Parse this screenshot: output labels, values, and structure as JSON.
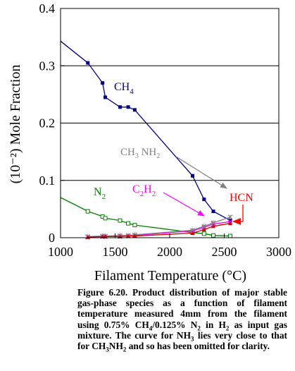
{
  "chart_data": {
    "type": "scatter",
    "xlabel": "Filament Temperature",
    "xlabel_unit": "(°C)",
    "ylabel": "(10⁻²) Mole Fraction",
    "xlim": [
      1000,
      3000
    ],
    "ylim": [
      0,
      0.4
    ],
    "xticks": [
      "1000",
      "1500",
      "2000",
      "2500",
      "3000"
    ],
    "yticks": [
      "0",
      "0.1",
      "0.2",
      "0.3",
      "0.4"
    ],
    "grid": "horizontal",
    "series": [
      {
        "name": "CH4",
        "color": "#00008b",
        "marker": "filled-square",
        "points": [
          [
            1250,
            0.305
          ],
          [
            1385,
            0.27
          ],
          [
            1410,
            0.245
          ],
          [
            1545,
            0.228
          ],
          [
            1620,
            0.228
          ],
          [
            1680,
            0.223
          ],
          [
            2210,
            0.108
          ],
          [
            2315,
            0.067
          ],
          [
            2400,
            0.046
          ],
          [
            2555,
            0.03
          ]
        ]
      },
      {
        "name": "N2",
        "color": "#008000",
        "marker": "open-square",
        "points": [
          [
            1250,
            0.046
          ],
          [
            1385,
            0.037
          ],
          [
            1410,
            0.034
          ],
          [
            1545,
            0.03
          ],
          [
            1620,
            0.025
          ],
          [
            1680,
            0.022
          ],
          [
            2210,
            0.009
          ],
          [
            2315,
            0.007
          ],
          [
            2400,
            0.004
          ],
          [
            2555,
            0.003
          ]
        ]
      },
      {
        "name": "C2H2",
        "color": "#ff00ff",
        "marker": "cross",
        "points": [
          [
            1250,
            0.001
          ],
          [
            1385,
            0.002
          ],
          [
            1410,
            0.002
          ],
          [
            1545,
            0.002
          ],
          [
            1620,
            0.003
          ],
          [
            1680,
            0.004
          ],
          [
            2210,
            0.012
          ],
          [
            2315,
            0.018
          ],
          [
            2400,
            0.024
          ],
          [
            2555,
            0.028
          ]
        ]
      },
      {
        "name": "CH3NH2",
        "color": "#808080",
        "marker": "asterisk",
        "points": [
          [
            1250,
            0.002
          ],
          [
            1385,
            0.003
          ],
          [
            1410,
            0.003
          ],
          [
            1545,
            0.004
          ],
          [
            1620,
            0.004
          ],
          [
            1680,
            0.005
          ],
          [
            2210,
            0.013
          ],
          [
            2315,
            0.02
          ],
          [
            2400,
            0.026
          ],
          [
            2555,
            0.036
          ]
        ]
      },
      {
        "name": "HCN",
        "color": "#cc0000",
        "marker": "filled-triangle",
        "points": [
          [
            1250,
            0.001
          ],
          [
            1385,
            0.002
          ],
          [
            1410,
            0.002
          ],
          [
            1545,
            0.002
          ],
          [
            1620,
            0.003
          ],
          [
            1680,
            0.003
          ],
          [
            2210,
            0.008
          ],
          [
            2315,
            0.014
          ],
          [
            2400,
            0.02
          ],
          [
            2555,
            0.025
          ]
        ]
      }
    ],
    "annotations": [
      {
        "label_main": "CH",
        "label_sub": "4",
        "color": "#00008b",
        "arrow": false
      },
      {
        "label_main": "CH",
        "label_sub": "3",
        "label_tail": " NH",
        "label_sub2": "2",
        "color": "#808080",
        "arrow": true
      },
      {
        "label_main": "N",
        "label_sub": "2",
        "color": "#008000",
        "arrow": false
      },
      {
        "label_main": "C",
        "label_sub": "2",
        "label_tail": "H",
        "label_sub2": "2",
        "color": "#ff00ff",
        "arrow": true
      },
      {
        "label_main": "HCN",
        "color": "#ff0000",
        "arrow": true
      }
    ]
  },
  "caption": {
    "figure_label": "Figure 6.20.",
    "text_1": " Product distribution of major stable gas-phase species as a function of filament temperature measured 4mm from the filament using 0.75% CH",
    "sub_1": "4",
    "text_2": "/0.125% N",
    "sub_2": "2",
    "text_3": " in H",
    "sub_3": "2",
    "text_4": " as input gas mixture. The curve for NH",
    "sub_4": "3",
    "text_5": " lies very close to that for CH",
    "sub_5": "3",
    "text_6": "NH",
    "sub_6": "2",
    "text_7": " and so has been omitted for clarity."
  }
}
